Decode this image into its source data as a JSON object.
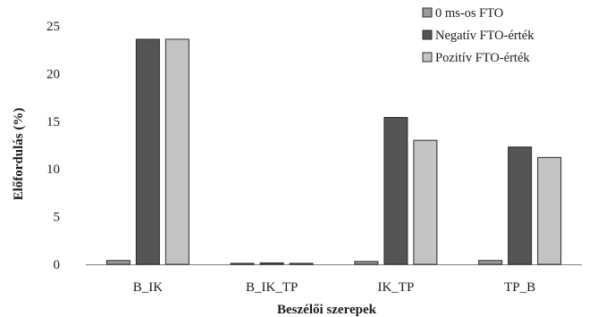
{
  "chart_data": {
    "type": "bar",
    "title": "",
    "xlabel": "Beszélői szerepek",
    "ylabel": "Előfordulás (%)",
    "ylim": [
      0,
      25
    ],
    "yticks": [
      "0",
      "5",
      "10",
      "15",
      "20",
      "25"
    ],
    "grid": false,
    "legend_position": "top-right",
    "categories": [
      "B_IK",
      "B_IK_TP",
      "IK_TP",
      "TP_B"
    ],
    "series": [
      {
        "name": "0 ms-os FTO",
        "color": "#9a9a9a",
        "values": [
          0.4,
          0.1,
          0.3,
          0.4
        ]
      },
      {
        "name": "Negatív FTO-érték",
        "color": "#555555",
        "values": [
          23.6,
          0.15,
          15.4,
          12.3
        ]
      },
      {
        "name": "Pozitív FTO-érték",
        "color": "#c4c4c4",
        "values": [
          23.6,
          0.1,
          13.0,
          11.2
        ]
      }
    ]
  }
}
